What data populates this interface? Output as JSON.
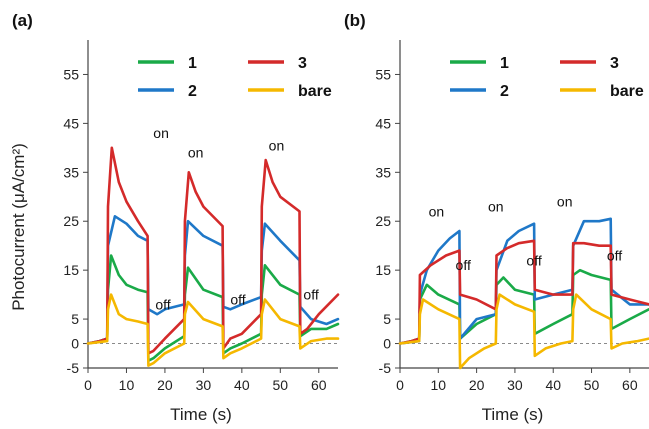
{
  "chart_data": [
    {
      "panel": "(a)",
      "type": "line",
      "ylabel": "Photocurrent (μA/cm²)",
      "xlabel": "Time (s)",
      "xlim": [
        0,
        65
      ],
      "ylim": [
        -5,
        60
      ],
      "xticks": [
        0,
        10,
        20,
        30,
        40,
        50,
        60
      ],
      "yticks": [
        -5,
        0,
        5,
        15,
        25,
        35,
        45,
        55
      ],
      "zero_line": true,
      "legend": {
        "position": "top",
        "entries": [
          "1",
          "3",
          "2",
          "bare"
        ]
      },
      "annotations": [
        {
          "text": "on",
          "x": 19,
          "y": 42
        },
        {
          "text": "on",
          "x": 28,
          "y": 38
        },
        {
          "text": "on",
          "x": 49,
          "y": 39.5
        },
        {
          "text": "off",
          "x": 19.5,
          "y": 7
        },
        {
          "text": "off",
          "x": 39,
          "y": 8
        },
        {
          "text": "off",
          "x": 58,
          "y": 9
        }
      ],
      "series": [
        {
          "name": "1",
          "color": "#1aaa48",
          "x": [
            0,
            3,
            5,
            5.2,
            6,
            8,
            10,
            13,
            15.5,
            15.7,
            17,
            20,
            25,
            25.2,
            26,
            30,
            35,
            35.2,
            37,
            40,
            45,
            45.2,
            46,
            50,
            55,
            55.2,
            58,
            62,
            65
          ],
          "y": [
            0,
            0.5,
            1,
            11,
            18,
            14,
            12,
            11,
            10.5,
            -3.5,
            -3,
            -1,
            1.5,
            10,
            15.5,
            11,
            9.5,
            -2,
            -1,
            0,
            2,
            10,
            16,
            12,
            10,
            1.5,
            3,
            3,
            4
          ]
        },
        {
          "name": "2",
          "color": "#1f78c8",
          "x": [
            0,
            3,
            5,
            5.2,
            7,
            10,
            13,
            15.5,
            15.7,
            18,
            20,
            25,
            25.2,
            26,
            30,
            35,
            35.2,
            37,
            40,
            45,
            45.2,
            46,
            50,
            55,
            55.2,
            58,
            62,
            65
          ],
          "y": [
            0,
            0.5,
            1,
            20,
            26,
            24.5,
            22,
            21,
            7,
            6,
            7,
            8,
            18,
            25,
            22,
            20,
            7.5,
            7,
            8,
            9.5,
            19,
            24.5,
            21,
            17,
            7.5,
            5,
            4,
            5
          ]
        },
        {
          "name": "3",
          "color": "#d42a2a",
          "x": [
            0,
            3,
            5,
            5.2,
            6.2,
            8,
            10,
            13,
            15.5,
            15.7,
            17,
            20,
            25,
            25.2,
            26.2,
            28,
            30,
            35,
            35.2,
            37,
            40,
            45,
            45.2,
            46.2,
            48,
            50,
            55,
            55.2,
            57,
            60,
            65
          ],
          "y": [
            0,
            0.5,
            1,
            28,
            40,
            33,
            29,
            25,
            22,
            -2,
            -1.5,
            1,
            5,
            25,
            35,
            31,
            28,
            24,
            -1,
            1,
            2,
            6,
            28,
            37.5,
            33,
            30,
            27,
            2,
            3,
            6,
            10
          ]
        },
        {
          "name": "bare",
          "color": "#f5b800",
          "x": [
            0,
            3,
            5,
            5.2,
            6,
            8,
            10,
            13,
            15.5,
            15.7,
            17,
            20,
            25,
            25.2,
            26,
            30,
            35,
            35.2,
            37,
            40,
            45,
            45.2,
            46,
            50,
            55,
            55.2,
            58,
            62,
            65
          ],
          "y": [
            0,
            0.3,
            0.5,
            7,
            10,
            6,
            5,
            4.5,
            4,
            -4.5,
            -4,
            -2,
            0,
            6,
            8.5,
            5,
            3.5,
            -3,
            -2,
            -1,
            1,
            6,
            9,
            5,
            3.5,
            -1,
            0.5,
            1,
            1
          ]
        }
      ]
    },
    {
      "panel": "(b)",
      "type": "line",
      "xlabel": "Time (s)",
      "xlim": [
        0,
        65
      ],
      "ylim": [
        -5,
        60
      ],
      "xticks": [
        0,
        10,
        20,
        30,
        40,
        50,
        60
      ],
      "yticks": [
        -5,
        0,
        5,
        15,
        25,
        35,
        45,
        55
      ],
      "zero_line": true,
      "legend": {
        "position": "top",
        "entries": [
          "1",
          "3",
          "2",
          "bare"
        ]
      },
      "annotations": [
        {
          "text": "on",
          "x": 9.5,
          "y": 26
        },
        {
          "text": "on",
          "x": 25,
          "y": 27
        },
        {
          "text": "on",
          "x": 43,
          "y": 28
        },
        {
          "text": "off",
          "x": 16.5,
          "y": 15
        },
        {
          "text": "off",
          "x": 35,
          "y": 16
        },
        {
          "text": "off",
          "x": 56,
          "y": 17
        }
      ],
      "series": [
        {
          "name": "1",
          "color": "#1aaa48",
          "x": [
            0,
            3,
            5,
            5.2,
            7,
            10,
            15.5,
            15.7,
            20,
            25,
            25.2,
            27,
            30,
            35,
            35.2,
            40,
            45,
            45.2,
            47,
            50,
            55,
            55.2,
            60,
            65
          ],
          "y": [
            0,
            0.5,
            1,
            9,
            12,
            10,
            8,
            1,
            4,
            6,
            12,
            13.5,
            11,
            10,
            2,
            4,
            6,
            14,
            15,
            14,
            13,
            3,
            5,
            7
          ]
        },
        {
          "name": "2",
          "color": "#1f78c8",
          "x": [
            0,
            3,
            5,
            5.2,
            7,
            10,
            13,
            15.5,
            15.7,
            20,
            25,
            25.2,
            28,
            31,
            35,
            35.2,
            40,
            45,
            45.2,
            48,
            52,
            55,
            55.2,
            60,
            65
          ],
          "y": [
            0,
            0.3,
            0.5,
            10,
            15,
            19,
            21.5,
            23,
            1,
            5,
            6,
            15,
            21,
            23,
            24.5,
            9,
            10,
            11,
            20,
            25,
            25,
            25.5,
            11,
            8,
            8
          ]
        },
        {
          "name": "3",
          "color": "#d42a2a",
          "x": [
            0,
            3,
            5,
            5.2,
            8,
            12,
            15.5,
            15.7,
            20,
            25,
            25.2,
            28,
            31,
            35,
            35.2,
            40,
            45,
            45.2,
            48,
            52,
            55,
            55.2,
            60,
            65
          ],
          "y": [
            0,
            0.5,
            1,
            14,
            16,
            18,
            19,
            10,
            9,
            7,
            18,
            19.5,
            20.5,
            21,
            11,
            10,
            10,
            20.5,
            20.5,
            20,
            20,
            10,
            9,
            8
          ]
        },
        {
          "name": "bare",
          "color": "#f5b800",
          "x": [
            0,
            3,
            5,
            5.2,
            6,
            10,
            15.5,
            15.7,
            18,
            22,
            25,
            25.2,
            26,
            30,
            35,
            35.2,
            38,
            42,
            45,
            45.2,
            46,
            50,
            55,
            55.2,
            58,
            62,
            65
          ],
          "y": [
            0,
            0.3,
            0.5,
            6,
            9,
            7,
            5,
            -5,
            -3,
            -1,
            0,
            7,
            10,
            8,
            6.5,
            -2.5,
            -1,
            0,
            0.5,
            7,
            10,
            7,
            5,
            -1,
            0,
            0.5,
            1
          ]
        }
      ]
    }
  ]
}
